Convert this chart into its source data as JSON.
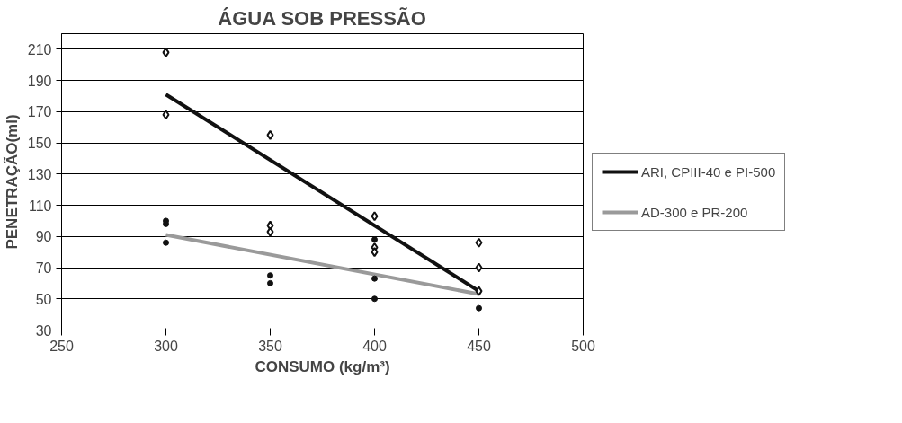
{
  "chart_data": {
    "type": "scatter",
    "title": "ÁGUA SOB PRESSÃO",
    "xlabel": "CONSUMO (kg/m³)",
    "ylabel": "PENETRAÇÃO(ml)",
    "xlim": [
      250,
      500
    ],
    "xticks": [
      250,
      300,
      350,
      400,
      450,
      500
    ],
    "ylim": [
      30,
      220
    ],
    "yticks": [
      30,
      50,
      70,
      90,
      110,
      130,
      150,
      170,
      190,
      210
    ],
    "grid": "y",
    "legend": "right",
    "series": [
      {
        "name": "ARI, CPIII-40 e PI-500",
        "type": "line",
        "color": "#111111",
        "marker": "none",
        "x": [
          300,
          450
        ],
        "values": [
          181,
          55
        ]
      },
      {
        "name": "AD-300 e PR-200",
        "type": "line",
        "color": "#9a9a9a",
        "marker": "none",
        "x": [
          300,
          450
        ],
        "values": [
          91,
          53
        ]
      },
      {
        "color": "#111111",
        "marker": "diamond",
        "x": [
          300,
          300,
          350,
          350,
          350,
          400,
          400,
          400,
          450,
          450,
          450
        ],
        "values": [
          208,
          168,
          155,
          97,
          93,
          103,
          83,
          80,
          86,
          70,
          55
        ]
      },
      {
        "color": "#111111",
        "marker": "circle",
        "x": [
          300,
          300,
          300,
          350,
          350,
          400,
          400,
          400,
          450
        ],
        "values": [
          100,
          98,
          86,
          65,
          60,
          88,
          63,
          50,
          44
        ]
      }
    ]
  }
}
